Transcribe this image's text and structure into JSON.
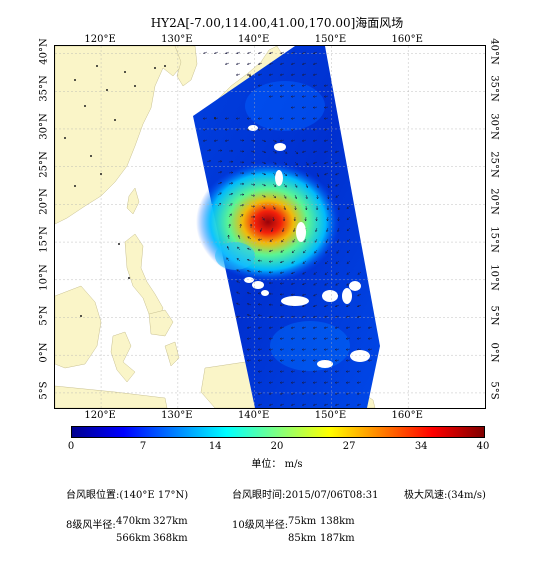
{
  "title": "HY2A[-7.00,114.00,41.00,170.00]海面风场",
  "map": {
    "lon_min": 114,
    "lon_max": 170,
    "lat_min": -7,
    "lat_max": 41,
    "lon_ticks": [
      "120°E",
      "130°E",
      "140°E",
      "150°E",
      "160°E"
    ],
    "lon_tick_values": [
      120,
      130,
      140,
      150,
      160
    ],
    "lat_ticks": [
      "5°S",
      "0°N",
      "5°N",
      "10°N",
      "15°N",
      "20°N",
      "25°N",
      "30°N",
      "35°N",
      "40°N"
    ],
    "lat_tick_values": [
      -5,
      0,
      5,
      10,
      15,
      20,
      25,
      30,
      35,
      40
    ],
    "land_color": "#faf5c8",
    "typhoon_center_lonlat": [
      140,
      17
    ]
  },
  "colorbar": {
    "ticks": [
      "0",
      "7",
      "14",
      "20",
      "27",
      "34",
      "40"
    ],
    "tick_values": [
      0,
      7,
      14,
      20,
      27,
      34,
      40
    ],
    "colors": [
      "#00008f",
      "#0000ff",
      "#0080ff",
      "#00ffff",
      "#80ff80",
      "#ffff00",
      "#ff8000",
      "#ff0000",
      "#800000"
    ],
    "unit": "单位： m/s"
  },
  "info": {
    "eye_position": "台风眼位置:(140°E  17°N)",
    "eye_time": "台风眼时间:2015/07/06T08:31",
    "max_wind": "极大风速:(34m/s)",
    "r7_label": "8级风半径:",
    "r7_a": "470km",
    "r7_b": "327km",
    "r7_c": "566km",
    "r7_d": "368km",
    "r10_label": "10级风半径:",
    "r10_a": "75km",
    "r10_b": "138km",
    "r10_c": "85km",
    "r10_d": "187km"
  }
}
